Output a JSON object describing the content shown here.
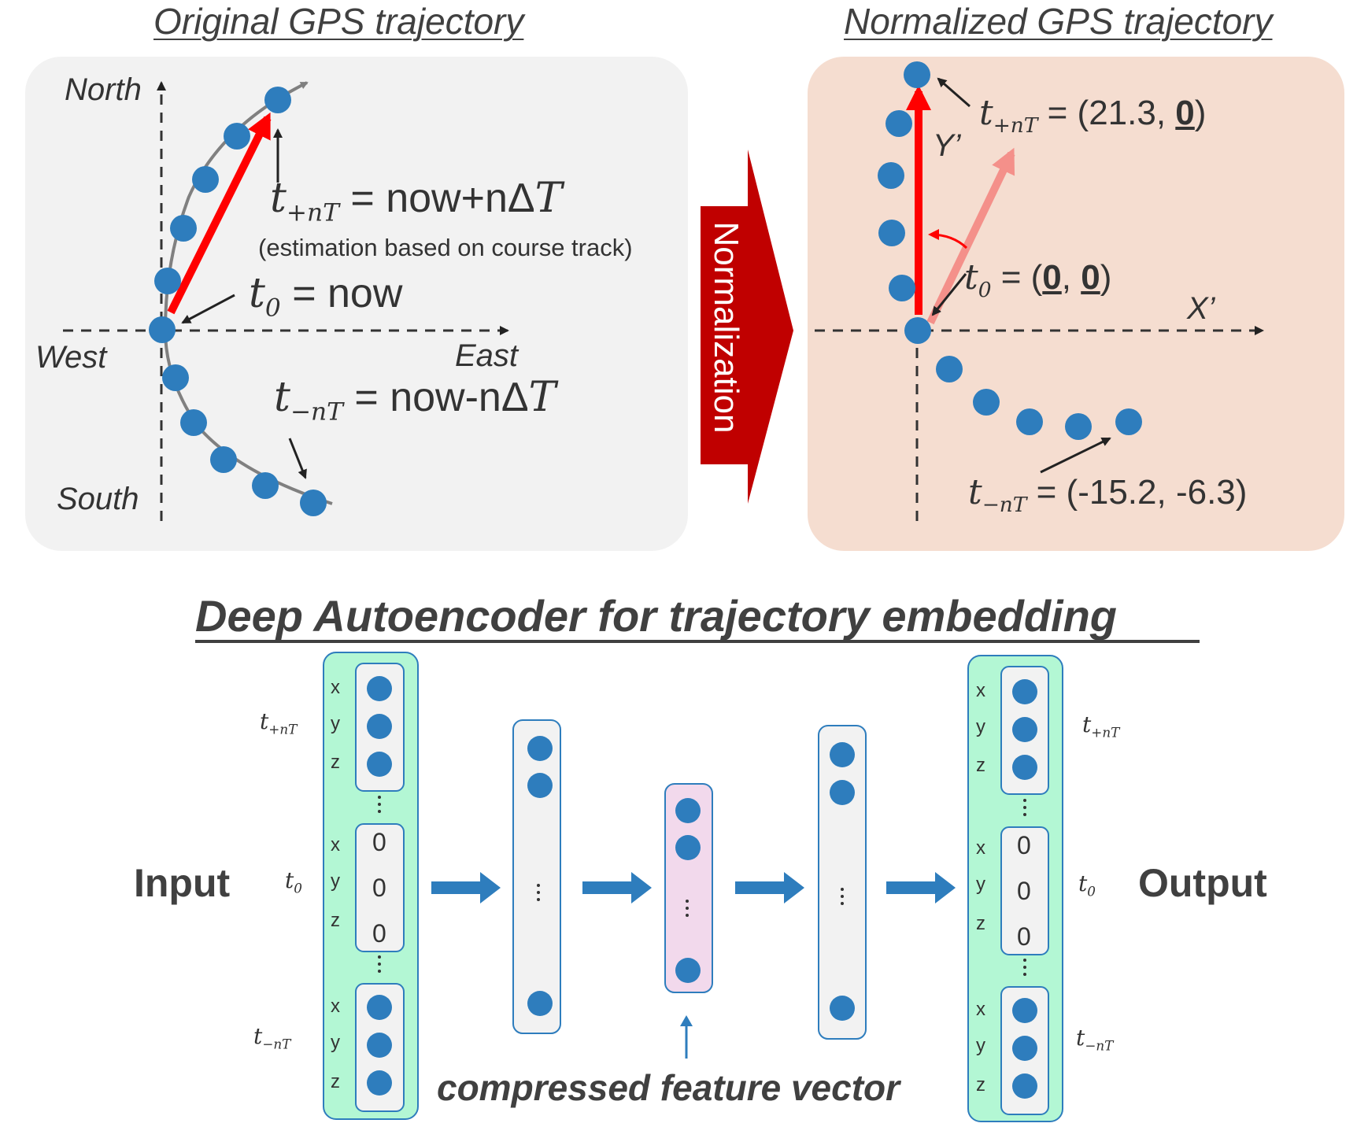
{
  "top_left": {
    "title": "Original GPS trajectory",
    "north": "North",
    "south": "South",
    "west": "West",
    "east": "East",
    "t_plus_var": "t",
    "t_plus_sub": "+nT",
    "t_plus_eq": " = now+nΔ",
    "t_plus_T": "T",
    "estimation_note": "(estimation based on course track)",
    "t0_var": "t",
    "t0_sub": "0",
    "t0_eq": " = now",
    "t_minus_var": "t",
    "t_minus_sub": "−nT",
    "t_minus_eq": " = now-nΔ",
    "t_minus_T": "T"
  },
  "arrow_label": "Normalization",
  "top_right": {
    "title": "Normalized GPS trajectory",
    "y_axis": "Y’",
    "x_axis": "X’",
    "t_plus_var": "t",
    "t_plus_sub": "+nT",
    "t_plus_pre": " = (21.3, ",
    "t_plus_zero": "0",
    "t_plus_post": ")",
    "t0_var": "t",
    "t0_sub": "0",
    "t0_pre": " = (",
    "t0_zero_a": "0",
    "t0_mid": ", ",
    "t0_zero_b": "0",
    "t0_post": ")",
    "t_minus_var": "t",
    "t_minus_sub": "−nT",
    "t_minus_eq": " = (-15.2, -6.3)"
  },
  "autoencoder": {
    "title": "Deep Autoencoder for trajectory embedding",
    "input_label": "Input",
    "output_label": "Output",
    "compressed_label": "compressed feature vector",
    "coord_x": "x",
    "coord_y": "y",
    "coord_z": "z",
    "zero": "0",
    "t_var": "t",
    "t_plus_sub": "+nT",
    "t0_sub": "0",
    "t_minus_sub": "−nT"
  },
  "colors": {
    "dot": "#2e7dbd",
    "red_arrow": "#ff0000",
    "panel_left": "#f2f2f2",
    "panel_right": "#f5ddd0",
    "normalization_arrow": "#c00000",
    "layer_green": "#b3f7d4",
    "layer_pink": "#f2d9ec",
    "layer_gray": "#f2f2f2",
    "flow_arrow": "#2e7dbd"
  }
}
